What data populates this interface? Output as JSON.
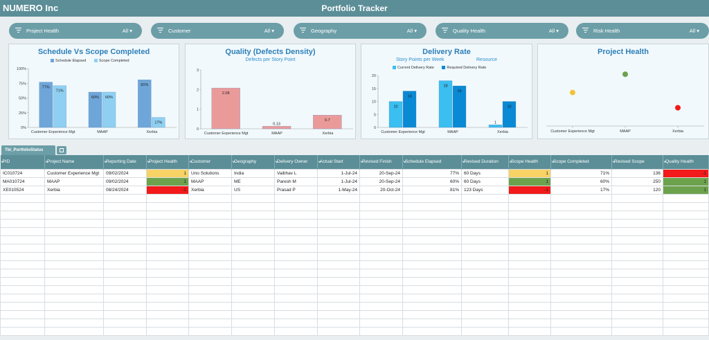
{
  "header": {
    "brand": "NUMERO Inc",
    "title": "Portfolio Tracker"
  },
  "filters": [
    {
      "label": "Project Health",
      "value": "All"
    },
    {
      "label": "Customer",
      "value": "All"
    },
    {
      "label": "Geography",
      "value": "All"
    },
    {
      "label": "Quality Health",
      "value": "All"
    },
    {
      "label": "Risk Health",
      "value": "All"
    }
  ],
  "chart_data": [
    {
      "type": "bar",
      "title": "Schedule Vs Scope Completed",
      "categories": [
        "Customer Experience Mgt",
        "MAAP",
        "Xerbia"
      ],
      "series": [
        {
          "name": "Schedule Elapsed",
          "values": [
            77,
            60,
            81
          ],
          "labels": [
            "77%",
            "60%",
            "81%"
          ],
          "color": "#6fa6d9"
        },
        {
          "name": "Scope Completed",
          "values": [
            71,
            60,
            17
          ],
          "labels": [
            "71%",
            "60%",
            "17%"
          ],
          "color": "#8fd0f2"
        }
      ],
      "yticks": [
        "0%",
        "25%",
        "50%",
        "75%",
        "100%"
      ],
      "ylim": [
        0,
        100
      ]
    },
    {
      "type": "bar",
      "title": "Quality (Defects Density)",
      "subtitle": "Defects per Story Point",
      "categories": [
        "Customer Experience Mgt",
        "MAAP",
        "Xerbia"
      ],
      "values": [
        2.08,
        0.13,
        0.7
      ],
      "labels": [
        "2.08",
        "0.13",
        "0.7"
      ],
      "color": "#eb9a9a",
      "yticks": [
        "0",
        "1",
        "2",
        "3"
      ],
      "ylim": [
        0,
        3
      ]
    },
    {
      "type": "bar",
      "title": "Delivery Rate",
      "subtitle": "Story Points per Week",
      "subtitle2": "Resource",
      "categories": [
        "Customer Experience Mgt",
        "MAAP",
        "Xerbia"
      ],
      "series": [
        {
          "name": "Current Delivery Rate",
          "values": [
            10,
            18,
            1
          ],
          "labels": [
            "10",
            "18",
            "1"
          ],
          "color": "#3bbef0"
        },
        {
          "name": "Required Delivery Rate",
          "values": [
            14,
            16,
            10
          ],
          "labels": [
            "14",
            "16",
            "10"
          ],
          "color": "#0a89d4"
        }
      ],
      "yticks": [
        "0",
        "5",
        "10",
        "15",
        "20"
      ],
      "ylim": [
        0,
        20
      ]
    },
    {
      "type": "scatter",
      "title": "Project Health",
      "categories": [
        "Customer Experience Mgt",
        "MAAP",
        "Xerbia"
      ],
      "points": [
        {
          "category": "Customer Experience Mgt",
          "level": 0.55,
          "color": "#f3c23c"
        },
        {
          "category": "MAAP",
          "level": 0.85,
          "color": "#6da24d"
        },
        {
          "category": "Xerbia",
          "level": 0.3,
          "color": "#f21a1a"
        }
      ]
    }
  ],
  "tab": {
    "label": "Tbl_PortfolioStatus"
  },
  "table": {
    "columns": [
      "PID",
      "Project Name",
      "Reporting Date",
      "Project Health",
      "Customer",
      "Geography",
      "Delivery Owner",
      "Actual Start",
      "Revised Finish",
      "Schedule Elapsed",
      "Revised Duration",
      "Scope Health",
      "Scope Completed",
      "Revised Scope",
      "Quality Health"
    ],
    "rows": [
      {
        "cells": [
          "IC010724",
          "Customer Experience Mgt",
          "09/02/2024",
          "1",
          "Uno Solutions",
          "India",
          "Vaibhav L",
          "1-Jul-24",
          "20-Sep-24",
          "77%",
          "60 Days",
          "1",
          "71%",
          "136",
          "-1"
        ],
        "health": [
          "amber",
          "amber",
          "red"
        ]
      },
      {
        "cells": [
          "MA010724",
          "MAAP",
          "09/02/2024",
          "1",
          "MAAP",
          "ME",
          "Paresh M",
          "1-Jul-24",
          "20-Sep-24",
          "60%",
          "60 Days",
          "1",
          "60%",
          "250",
          "1"
        ],
        "health": [
          "green",
          "green",
          "green"
        ]
      },
      {
        "cells": [
          "XE010524",
          "Xerbia",
          "08/24/2024",
          "-1",
          "Xerbia",
          "US",
          "Prasad P",
          "1-May-24",
          "20-Oct-24",
          "81%",
          "123 Days",
          "-1",
          "17%",
          "120",
          "1"
        ],
        "health": [
          "red",
          "red",
          "green"
        ]
      }
    ]
  },
  "colors": {
    "header": "#5b8e97",
    "filter": "#6c9ea7",
    "title": "#2d7fb8",
    "amber": "#f7d265",
    "green": "#6da24d",
    "red": "#f21a1a"
  }
}
